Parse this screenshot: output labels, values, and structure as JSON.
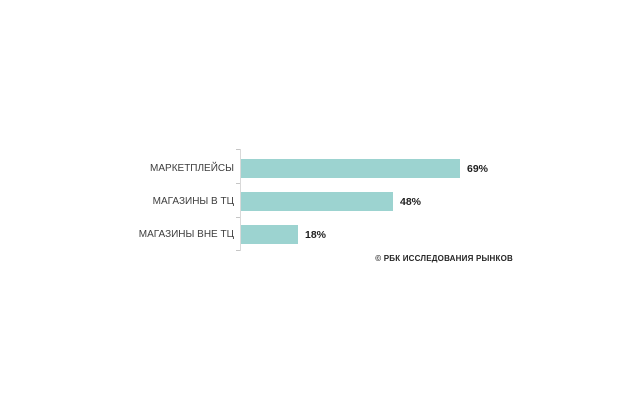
{
  "chart_data": {
    "type": "bar",
    "orientation": "horizontal",
    "title": "",
    "categories": [
      "МАРКЕТПЛЕЙСЫ",
      "МАГАЗИНЫ В ТЦ",
      "МАГАЗИНЫ ВНЕ ТЦ"
    ],
    "values": [
      69,
      48,
      18
    ],
    "value_labels": [
      "69%",
      "48%",
      "18%"
    ],
    "unit": "%",
    "xlim": [
      0,
      100
    ],
    "grid": false,
    "legend": false,
    "bar_color": "#9CD3D0",
    "axis_color": "#D9D9D9",
    "tick_color": "#C6C6C6",
    "label_color": "#3D3D3D",
    "value_color": "#1F1F1F"
  },
  "footer": {
    "credit": "© РБК ИССЛЕДОВАНИЯ РЫНКОВ"
  }
}
